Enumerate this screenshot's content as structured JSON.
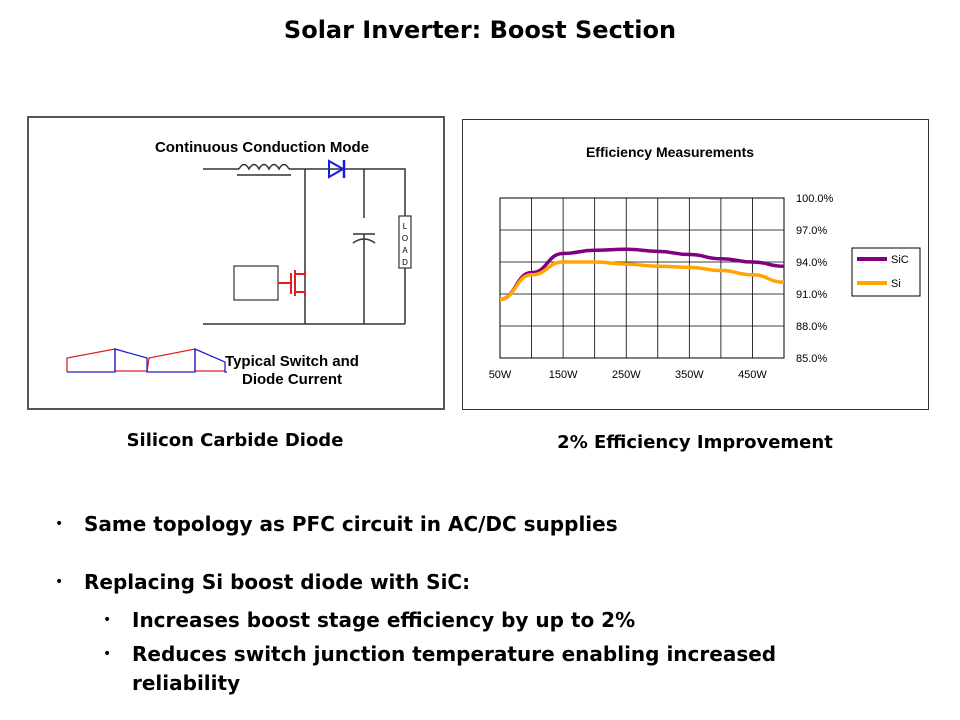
{
  "title": "Solar Inverter: Boost Section",
  "circuit": {
    "heading": "Continuous Conduction Mode",
    "load_letters": [
      "L",
      "O",
      "A",
      "D"
    ],
    "waveform_caption_line1": "Typical Switch and",
    "waveform_caption_line2": "Diode Current",
    "colors": {
      "diode": "#1a1ae6",
      "switch": "#e02020",
      "wave_red": "#e02020",
      "wave_blue": "#2020d0"
    }
  },
  "chart_data": {
    "type": "line",
    "title": "Efficiency Measurements",
    "x": [
      50,
      100,
      150,
      200,
      250,
      300,
      350,
      400,
      450,
      500
    ],
    "xtick_labels": [
      "50W",
      "150W",
      "250W",
      "350W",
      "450W"
    ],
    "ytick_labels": [
      "100.0%",
      "97.0%",
      "94.0%",
      "91.0%",
      "88.0%",
      "85.0%"
    ],
    "ylim": [
      85,
      100
    ],
    "xlim": [
      50,
      500
    ],
    "grid": true,
    "legend": "right",
    "series": [
      {
        "name": "SiC",
        "color": "#800080",
        "values": [
          90.5,
          93.0,
          94.8,
          95.1,
          95.2,
          95.0,
          94.7,
          94.3,
          94.0,
          93.6
        ]
      },
      {
        "name": "Si",
        "color": "#ffa500",
        "values": [
          90.5,
          92.8,
          94.0,
          94.0,
          93.8,
          93.6,
          93.5,
          93.2,
          92.8,
          92.1
        ]
      }
    ]
  },
  "captions": {
    "left": "Silicon Carbide Diode",
    "right": "2% Efficiency Improvement"
  },
  "bullets": {
    "item1": "Same topology as PFC circuit in AC/DC supplies",
    "item2": "Replacing Si boost diode with SiC:",
    "sub1": "Increases boost stage efficiency by up to 2%",
    "sub2_line1": "Reduces switch junction temperature enabling increased",
    "sub2_line2": "reliability"
  }
}
